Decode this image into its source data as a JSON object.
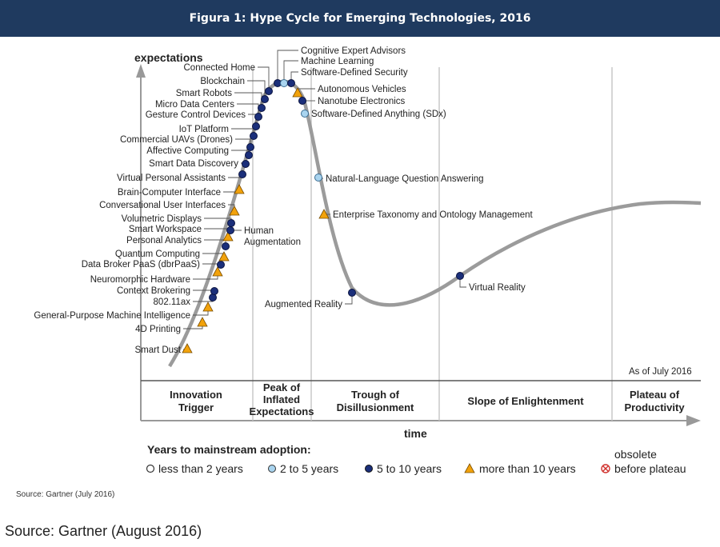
{
  "banner": {
    "title": "Figura 1: Hype Cycle for Emerging Technologies, 2016"
  },
  "chart_data": {
    "type": "scatter",
    "title": "Hype Cycle for Emerging Technologies, 2016",
    "ylabel": "expectations",
    "xlabel": "time",
    "as_of": "As of July 2016",
    "phases": [
      "Innovation Trigger",
      "Peak of Inflated Expectations",
      "Trough of Disillusionment",
      "Slope of Enlightenment",
      "Plateau of Productivity"
    ],
    "legend": {
      "title": "Years to mainstream adoption:",
      "entries": [
        {
          "key": "lt2",
          "label": "less than 2 years"
        },
        {
          "key": "2to5",
          "label": "2 to 5 years"
        },
        {
          "key": "5to10",
          "label": "5 to 10 years"
        },
        {
          "key": "gt10",
          "label": "more than 10 years"
        },
        {
          "key": "obs",
          "label_line1": "obsolete",
          "label_line2": "before plateau"
        }
      ]
    },
    "colors": {
      "5to10": "#1b2f7a",
      "2to5": "#a9d4ef",
      "gt10": "#f2a20b",
      "curve": "#9b9b9b"
    },
    "technologies": [
      {
        "label": "Smart Dust",
        "type": "gt10"
      },
      {
        "label": "4D Printing",
        "type": "gt10"
      },
      {
        "label": "General-Purpose Machine Intelligence",
        "type": "gt10"
      },
      {
        "label": "802.11ax",
        "type": "5to10"
      },
      {
        "label": "Context Brokering",
        "type": "5to10"
      },
      {
        "label": "Neuromorphic Hardware",
        "type": "gt10"
      },
      {
        "label": "Data Broker PaaS (dbrPaaS)",
        "type": "5to10"
      },
      {
        "label": "Quantum Computing",
        "type": "gt10"
      },
      {
        "label": "Personal Analytics",
        "type": "5to10"
      },
      {
        "label": "Human Augmentation",
        "type": "gt10"
      },
      {
        "label": "Smart Workspace",
        "type": "5to10"
      },
      {
        "label": "Volumetric Displays",
        "type": "5to10"
      },
      {
        "label": "Conversational User Interfaces",
        "type": "gt10"
      },
      {
        "label": "Brain-Computer Interface",
        "type": "gt10"
      },
      {
        "label": "Virtual Personal Assistants",
        "type": "5to10"
      },
      {
        "label": "Smart Data Discovery",
        "type": "5to10"
      },
      {
        "label": "Affective Computing",
        "type": "5to10"
      },
      {
        "label": "Commercial UAVs (Drones)",
        "type": "5to10"
      },
      {
        "label": "IoT Platform",
        "type": "5to10"
      },
      {
        "label": "Gesture Control Devices",
        "type": "5to10"
      },
      {
        "label": "Micro Data Centers",
        "type": "5to10"
      },
      {
        "label": "Smart Robots",
        "type": "5to10"
      },
      {
        "label": "Blockchain",
        "type": "5to10"
      },
      {
        "label": "Connected Home",
        "type": "5to10"
      },
      {
        "label": "Cognitive Expert Advisors",
        "type": "5to10"
      },
      {
        "label": "Machine Learning",
        "type": "2to5"
      },
      {
        "label": "Software-Defined Security",
        "type": "5to10"
      },
      {
        "label": "Autonomous Vehicles",
        "type": "gt10"
      },
      {
        "label": "Nanotube Electronics",
        "type": "5to10"
      },
      {
        "label": "Software-Defined Anything (SDx)",
        "type": "2to5"
      },
      {
        "label": "Natural-Language Question Answering",
        "type": "2to5"
      },
      {
        "label": "Enterprise Taxonomy and Ontology Management",
        "type": "gt10"
      },
      {
        "label": "Augmented Reality",
        "type": "5to10"
      },
      {
        "label": "Virtual Reality",
        "type": "5to10"
      }
    ],
    "source_inner": "Source: Gartner (July 2016)"
  },
  "footer": {
    "source": "Source: Gartner (August 2016)"
  }
}
